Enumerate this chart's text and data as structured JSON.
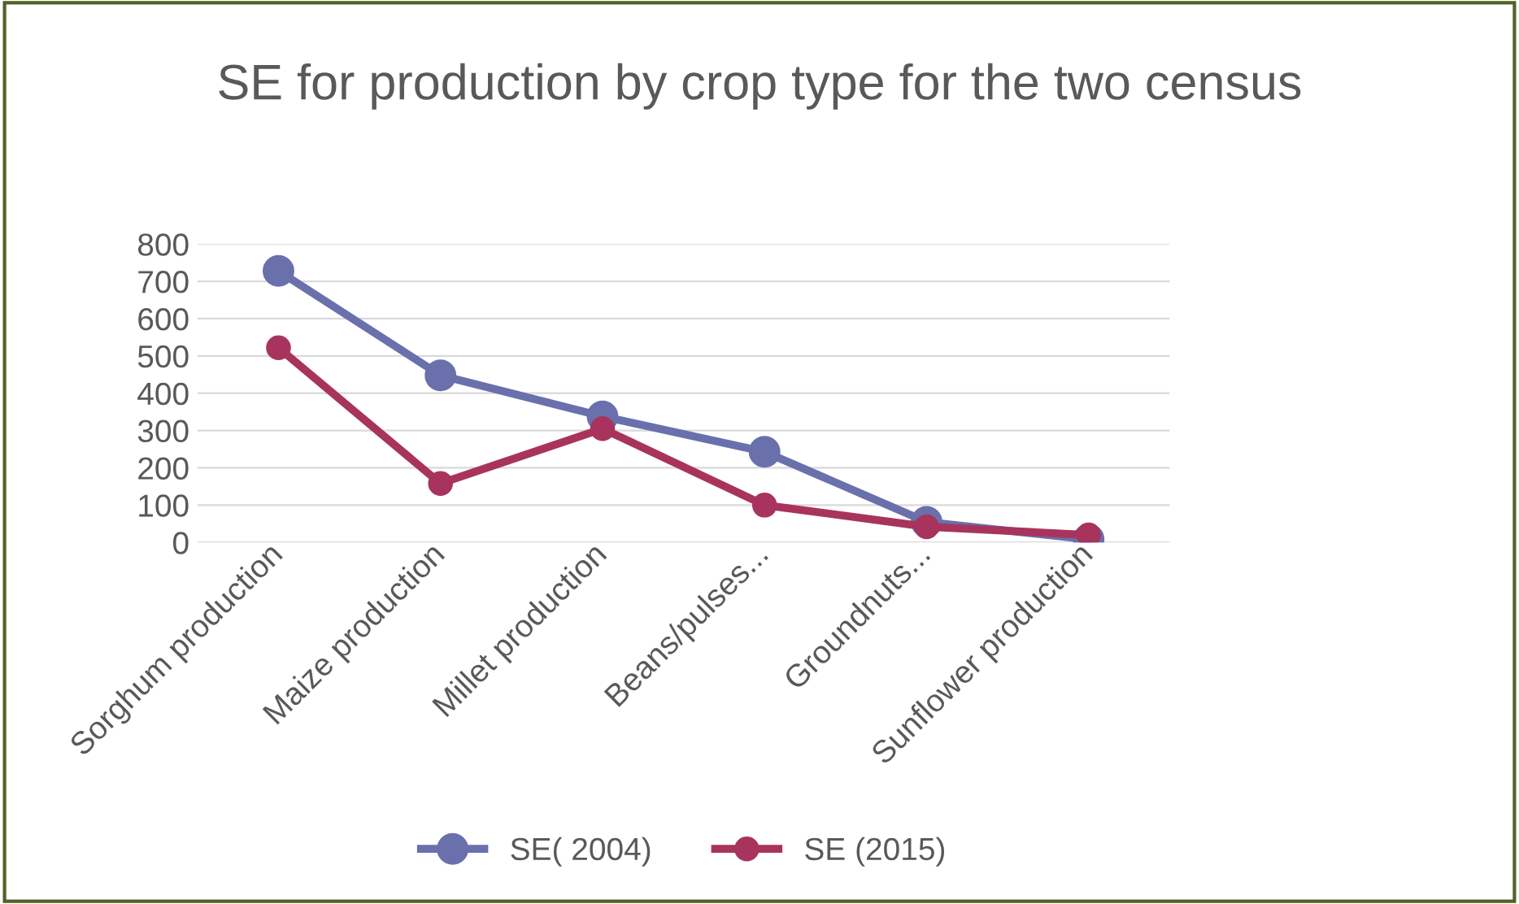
{
  "chart_data": {
    "type": "line",
    "title": "SE for production by crop type for the two census",
    "categories": [
      "Sorghum production",
      "Maize production",
      "Millet production",
      "Beans/pulses...",
      "Groundnuts...",
      "Sunflower production"
    ],
    "series": [
      {
        "name": "SE( 2004)",
        "color": "#6a70ac",
        "values": [
          728,
          448,
          338,
          243,
          55,
          8
        ]
      },
      {
        "name": "SE (2015)",
        "color": "#a8345e",
        "values": [
          522,
          158,
          305,
          100,
          42,
          20
        ]
      }
    ],
    "ylim": [
      0,
      800
    ],
    "yticks": [
      0,
      100,
      200,
      300,
      400,
      500,
      600,
      700,
      800
    ],
    "grid": "y",
    "legend": "bottom",
    "marker": "circle",
    "line_style": "solid"
  }
}
